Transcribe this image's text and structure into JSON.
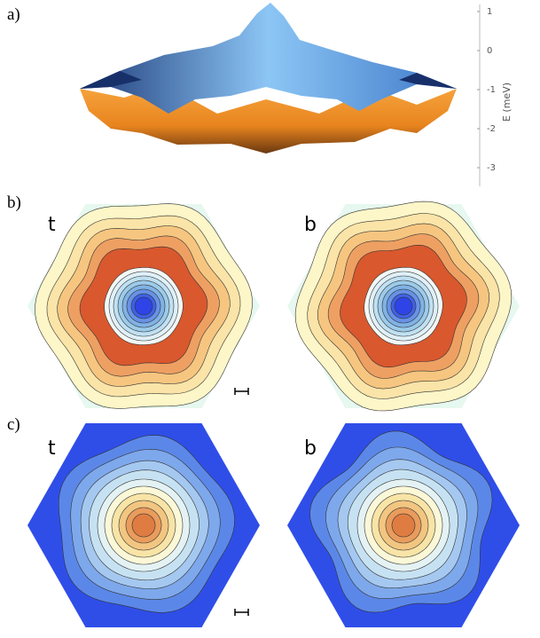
{
  "panels": [
    {
      "label": "a)"
    },
    {
      "label": "b)",
      "maps": [
        {
          "label": "t"
        },
        {
          "label": "b"
        }
      ]
    },
    {
      "label": "c)",
      "maps": [
        {
          "label": "t"
        },
        {
          "label": "b"
        }
      ]
    }
  ],
  "energy_axis": {
    "label": "E (meV)",
    "ticks": [
      1,
      0,
      -1,
      -2,
      -3
    ]
  }
}
